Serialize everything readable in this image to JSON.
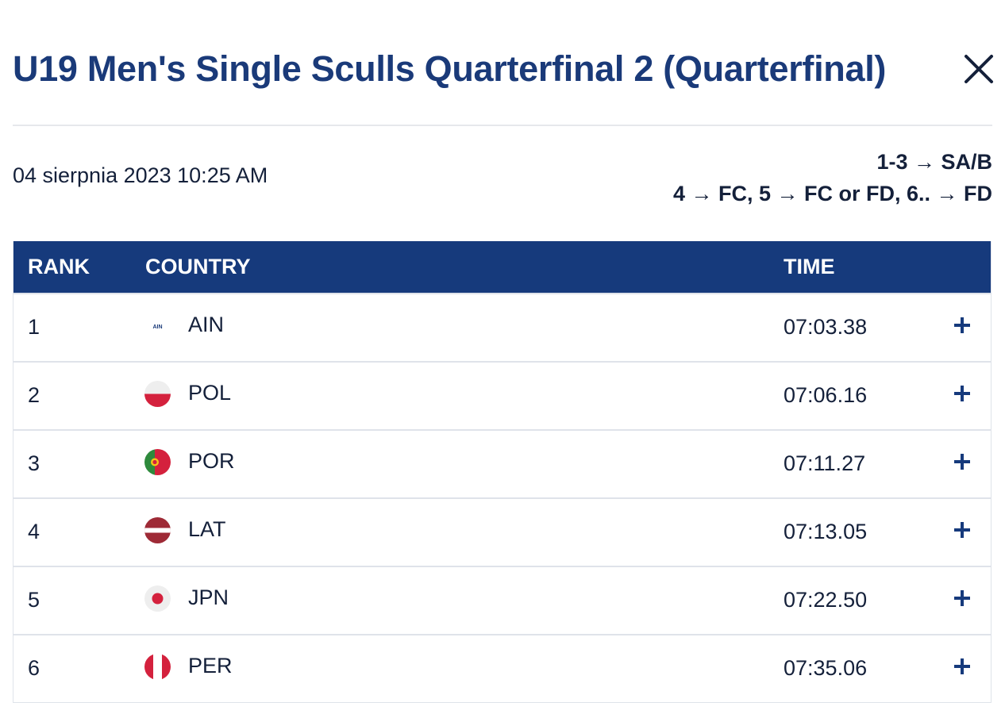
{
  "header": {
    "title": "U19 Men's Single Sculls Quarterfinal 2 (Quarterfinal)",
    "close_icon": "close-icon"
  },
  "meta": {
    "date": "04 sierpnia 2023 10:25 AM",
    "progression_line1": "1-3 → SA/B",
    "progression_line2": "4 → FC, 5 → FC or FD, 6.. → FD"
  },
  "table": {
    "columns": {
      "rank": "RANK",
      "country": "COUNTRY",
      "time": "TIME"
    },
    "rows": [
      {
        "rank": "1",
        "country": "AIN",
        "flag_label": "AIN",
        "time": "07:03.38",
        "flag": "ain-flag-icon"
      },
      {
        "rank": "2",
        "country": "POL",
        "time": "07:06.16",
        "flag": "poland-flag-icon"
      },
      {
        "rank": "3",
        "country": "POR",
        "time": "07:11.27",
        "flag": "portugal-flag-icon"
      },
      {
        "rank": "4",
        "country": "LAT",
        "time": "07:13.05",
        "flag": "latvia-flag-icon"
      },
      {
        "rank": "5",
        "country": "JPN",
        "time": "07:22.50",
        "flag": "japan-flag-icon"
      },
      {
        "rank": "6",
        "country": "PER",
        "time": "07:35.06",
        "flag": "peru-flag-icon"
      }
    ],
    "expand_icon": "plus-icon"
  },
  "colors": {
    "brand_navy": "#163a7c",
    "title_blue": "#1a3a79",
    "text": "#14203a",
    "border": "#dfe3ea"
  }
}
